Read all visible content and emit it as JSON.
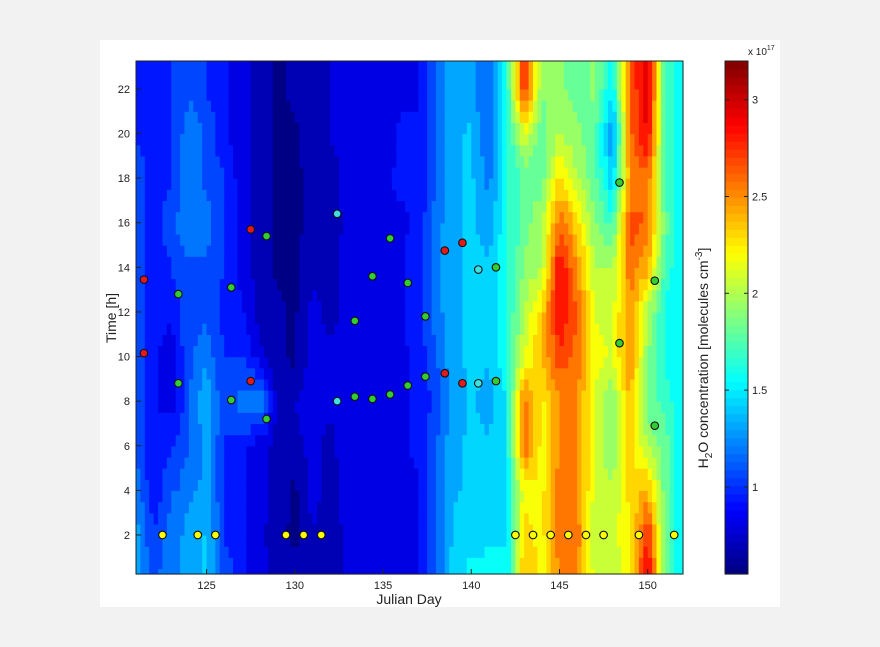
{
  "chart_data": {
    "type": "heatmap",
    "subtype": "filled-contour with scatter overlay",
    "xlabel": "Julian Day",
    "ylabel": "Time [h]",
    "xlim": [
      121,
      152
    ],
    "ylim": [
      0.25,
      23.25
    ],
    "xticks": [
      125,
      130,
      135,
      140,
      145,
      150
    ],
    "yticks": [
      2,
      4,
      6,
      8,
      10,
      12,
      14,
      16,
      18,
      20,
      22
    ],
    "colormap": "jet",
    "colorbar": {
      "label_main": "H",
      "label_sub": "2",
      "label_rest": "O concentration [molecules cm",
      "label_sup": "-3",
      "label_end": "]",
      "exponent_prefix": "x 10",
      "exponent": "17",
      "range": [
        0.55,
        3.2
      ],
      "ticks": [
        "1",
        "1.5",
        "2",
        "2.5",
        "3"
      ],
      "tick_values": [
        1,
        1.5,
        2,
        2.5,
        3
      ]
    },
    "contour_step": 0.125,
    "grid": {
      "days": [
        121,
        122,
        123,
        124,
        125,
        126,
        127,
        128,
        129,
        130,
        131,
        132,
        133,
        134,
        135,
        136,
        137,
        138,
        139,
        140,
        141,
        142,
        143,
        144,
        145,
        146,
        147,
        148,
        149,
        150,
        151,
        152
      ],
      "hours": [
        0,
        2,
        4,
        6,
        8,
        10,
        12,
        14,
        16,
        18,
        20,
        22,
        24
      ],
      "values": [
        [
          1.3,
          1.3,
          1.2,
          1.1,
          1.1,
          1.1,
          1.1,
          1.1,
          1.1,
          1.1,
          1.0,
          1.0,
          1.0
        ],
        [
          1.1,
          1.0,
          0.9,
          0.9,
          0.9,
          0.9,
          0.9,
          0.9,
          0.9,
          0.9,
          0.9,
          0.9,
          0.9
        ],
        [
          1.2,
          1.2,
          1.1,
          1.0,
          0.8,
          0.8,
          0.9,
          1.0,
          1.1,
          1.0,
          1.0,
          1.0,
          1.0
        ],
        [
          1.3,
          1.3,
          1.2,
          1.1,
          1.1,
          1.1,
          1.1,
          1.1,
          1.2,
          1.2,
          1.2,
          1.1,
          1.1
        ],
        [
          1.4,
          1.4,
          1.3,
          1.3,
          1.4,
          1.2,
          1.1,
          1.1,
          1.2,
          1.1,
          1.1,
          1.0,
          1.0
        ],
        [
          1.1,
          1.0,
          1.0,
          1.0,
          1.0,
          1.0,
          0.95,
          1.0,
          1.0,
          1.0,
          0.9,
          0.9,
          0.9
        ],
        [
          0.9,
          0.9,
          0.9,
          0.9,
          1.2,
          1.0,
          0.9,
          0.8,
          0.8,
          0.8,
          0.8,
          0.8,
          0.8
        ],
        [
          0.8,
          0.8,
          0.8,
          0.8,
          1.3,
          0.8,
          0.7,
          0.7,
          0.7,
          0.7,
          0.7,
          0.7,
          0.7
        ],
        [
          0.7,
          0.65,
          0.7,
          0.7,
          0.7,
          0.65,
          0.65,
          0.6,
          0.6,
          0.6,
          0.6,
          0.6,
          0.6
        ],
        [
          0.65,
          0.6,
          0.6,
          0.7,
          0.75,
          0.6,
          0.6,
          0.6,
          0.6,
          0.6,
          0.6,
          0.65,
          0.65
        ],
        [
          0.75,
          0.75,
          0.8,
          0.8,
          0.85,
          0.8,
          0.8,
          0.7,
          0.65,
          0.65,
          0.7,
          0.7,
          0.7
        ],
        [
          0.65,
          0.65,
          0.7,
          0.7,
          0.8,
          0.8,
          0.7,
          0.7,
          0.65,
          0.7,
          0.75,
          0.75,
          0.75
        ],
        [
          0.8,
          0.8,
          0.8,
          0.85,
          0.8,
          0.8,
          0.8,
          0.8,
          0.8,
          0.8,
          0.8,
          0.8,
          0.8
        ],
        [
          0.85,
          0.85,
          0.85,
          0.85,
          0.85,
          0.85,
          0.85,
          0.85,
          0.8,
          0.8,
          0.85,
          0.85,
          0.85
        ],
        [
          0.8,
          0.8,
          0.85,
          0.85,
          0.85,
          0.85,
          0.85,
          0.85,
          0.85,
          0.85,
          0.8,
          0.85,
          0.85
        ],
        [
          0.75,
          0.8,
          0.8,
          0.85,
          0.85,
          0.85,
          0.85,
          0.85,
          0.85,
          0.9,
          0.9,
          0.85,
          0.85
        ],
        [
          0.85,
          0.85,
          0.85,
          0.9,
          0.9,
          0.9,
          0.95,
          0.95,
          0.9,
          0.9,
          0.9,
          0.85,
          0.85
        ],
        [
          1.1,
          1.1,
          1.1,
          1.1,
          1.05,
          1.1,
          1.2,
          1.2,
          1.2,
          1.1,
          1.1,
          1.1,
          1.1
        ],
        [
          1.45,
          1.4,
          1.35,
          1.35,
          1.3,
          1.35,
          1.35,
          1.35,
          1.35,
          1.35,
          1.35,
          1.35,
          1.35
        ],
        [
          1.55,
          1.45,
          1.4,
          1.4,
          1.4,
          1.4,
          1.4,
          1.4,
          1.4,
          1.4,
          1.4,
          1.3,
          1.3
        ],
        [
          1.6,
          1.45,
          1.4,
          1.4,
          1.3,
          1.4,
          1.4,
          1.4,
          1.3,
          1.2,
          1.1,
          1.1,
          1.1
        ],
        [
          1.5,
          1.5,
          1.5,
          1.5,
          1.5,
          1.6,
          1.6,
          1.6,
          1.6,
          1.6,
          1.6,
          1.6,
          1.6
        ],
        [
          2.4,
          2.3,
          2.2,
          2.6,
          2.6,
          2.1,
          2.0,
          1.9,
          1.8,
          1.8,
          2.1,
          2.8,
          2.8
        ],
        [
          2.2,
          2.2,
          2.2,
          2.2,
          2.2,
          2.4,
          2.3,
          2.0,
          2.0,
          1.8,
          1.8,
          1.9,
          1.9
        ],
        [
          2.5,
          2.6,
          2.6,
          2.5,
          2.5,
          2.7,
          2.9,
          2.9,
          2.6,
          2.3,
          2.0,
          1.9,
          1.9
        ],
        [
          2.5,
          2.6,
          2.5,
          2.5,
          2.5,
          2.6,
          2.6,
          2.5,
          2.3,
          2.0,
          1.9,
          1.8,
          1.8
        ],
        [
          2.1,
          2.0,
          2.1,
          2.1,
          2.1,
          2.2,
          2.1,
          2.0,
          1.9,
          1.8,
          1.8,
          1.9,
          1.9
        ],
        [
          2.0,
          2.1,
          2.0,
          1.9,
          1.9,
          2.1,
          2.1,
          2.0,
          1.7,
          1.4,
          1.2,
          1.5,
          1.5
        ],
        [
          2.2,
          2.2,
          2.3,
          2.3,
          2.4,
          2.5,
          2.5,
          2.6,
          2.7,
          2.5,
          2.6,
          2.6,
          2.6
        ],
        [
          3.0,
          2.8,
          2.4,
          2.0,
          1.8,
          1.9,
          2.0,
          2.4,
          2.6,
          2.6,
          2.9,
          3.0,
          3.0
        ],
        [
          1.8,
          1.8,
          1.8,
          1.8,
          1.7,
          1.6,
          1.6,
          1.7,
          1.8,
          1.7,
          1.7,
          1.7,
          1.7
        ],
        [
          1.5,
          1.5,
          1.5,
          1.5,
          1.5,
          1.5,
          1.5,
          1.5,
          1.5,
          1.5,
          1.5,
          1.5,
          1.5
        ]
      ]
    },
    "points": [
      {
        "day": 121.45,
        "hour": 13.45,
        "color": "#e31a1c"
      },
      {
        "day": 121.45,
        "hour": 10.15,
        "color": "#e31a1c"
      },
      {
        "day": 127.5,
        "hour": 8.9,
        "color": "#e31a1c"
      },
      {
        "day": 127.5,
        "hour": 15.7,
        "color": "#e31a1c"
      },
      {
        "day": 138.5,
        "hour": 14.75,
        "color": "#e31a1c"
      },
      {
        "day": 139.5,
        "hour": 15.1,
        "color": "#e31a1c"
      },
      {
        "day": 138.5,
        "hour": 9.25,
        "color": "#e31a1c"
      },
      {
        "day": 139.5,
        "hour": 8.8,
        "color": "#e31a1c"
      },
      {
        "day": 123.4,
        "hour": 12.8,
        "color": "#33cc33"
      },
      {
        "day": 123.4,
        "hour": 8.8,
        "color": "#33cc33"
      },
      {
        "day": 126.4,
        "hour": 13.1,
        "color": "#33cc33"
      },
      {
        "day": 126.4,
        "hour": 8.05,
        "color": "#33cc33"
      },
      {
        "day": 128.4,
        "hour": 15.4,
        "color": "#33cc33"
      },
      {
        "day": 128.4,
        "hour": 7.2,
        "color": "#33cc33"
      },
      {
        "day": 133.4,
        "hour": 11.6,
        "color": "#33cc33"
      },
      {
        "day": 133.4,
        "hour": 8.2,
        "color": "#33cc33"
      },
      {
        "day": 134.4,
        "hour": 13.6,
        "color": "#33cc33"
      },
      {
        "day": 134.4,
        "hour": 8.1,
        "color": "#33cc33"
      },
      {
        "day": 135.4,
        "hour": 15.3,
        "color": "#33cc33"
      },
      {
        "day": 135.4,
        "hour": 8.3,
        "color": "#33cc33"
      },
      {
        "day": 136.4,
        "hour": 13.3,
        "color": "#33cc33"
      },
      {
        "day": 136.4,
        "hour": 8.7,
        "color": "#33cc33"
      },
      {
        "day": 137.4,
        "hour": 11.8,
        "color": "#33cc33"
      },
      {
        "day": 137.4,
        "hour": 9.1,
        "color": "#33cc33"
      },
      {
        "day": 141.4,
        "hour": 14.0,
        "color": "#33cc33"
      },
      {
        "day": 141.4,
        "hour": 8.9,
        "color": "#33cc33"
      },
      {
        "day": 148.4,
        "hour": 17.8,
        "color": "#33cc33"
      },
      {
        "day": 148.4,
        "hour": 10.6,
        "color": "#33cc33"
      },
      {
        "day": 150.4,
        "hour": 13.4,
        "color": "#33cc33"
      },
      {
        "day": 150.4,
        "hour": 6.9,
        "color": "#33cc33"
      },
      {
        "day": 132.4,
        "hour": 16.4,
        "color": "#40e0e0"
      },
      {
        "day": 132.4,
        "hour": 8.0,
        "color": "#40e0e0"
      },
      {
        "day": 140.4,
        "hour": 13.9,
        "color": "#40e0e0"
      },
      {
        "day": 140.4,
        "hour": 8.8,
        "color": "#40e0e0"
      },
      {
        "day": 122.5,
        "hour": 2,
        "color": "#ffff00"
      },
      {
        "day": 124.5,
        "hour": 2,
        "color": "#ffff00"
      },
      {
        "day": 125.5,
        "hour": 2,
        "color": "#ffff00"
      },
      {
        "day": 129.5,
        "hour": 2,
        "color": "#ffff00"
      },
      {
        "day": 130.5,
        "hour": 2,
        "color": "#ffff00"
      },
      {
        "day": 131.5,
        "hour": 2,
        "color": "#ffff00"
      },
      {
        "day": 142.5,
        "hour": 2,
        "color": "#ffff00"
      },
      {
        "day": 143.5,
        "hour": 2,
        "color": "#ffff00"
      },
      {
        "day": 144.5,
        "hour": 2,
        "color": "#ffff00"
      },
      {
        "day": 145.5,
        "hour": 2,
        "color": "#ffff00"
      },
      {
        "day": 146.5,
        "hour": 2,
        "color": "#ffff00"
      },
      {
        "day": 147.5,
        "hour": 2,
        "color": "#ffff00"
      },
      {
        "day": 149.5,
        "hour": 2,
        "color": "#ffff00"
      },
      {
        "day": 151.5,
        "hour": 2,
        "color": "#ffff00"
      }
    ]
  }
}
